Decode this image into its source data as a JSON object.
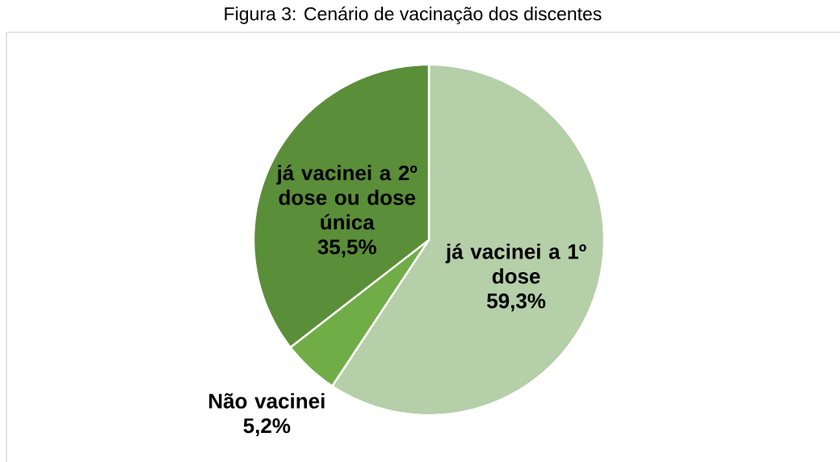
{
  "chart_data": {
    "type": "pie",
    "title": "Figura 3: Cenário de vacinação dos discentes",
    "categories": [
      "já vacinei a 1º dose",
      "Não vacinei",
      "já vacinei a 2º dose ou dose única"
    ],
    "values": [
      59.3,
      5.2,
      35.5
    ],
    "colors": [
      "#b5cfa8",
      "#70ad47",
      "#5b8e38"
    ],
    "value_labels": [
      "59,3%",
      "5,2%",
      "35,5%"
    ]
  }
}
